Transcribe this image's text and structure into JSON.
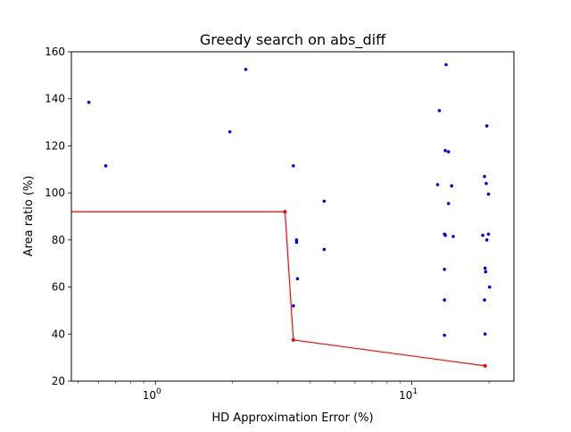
{
  "chart_data": {
    "type": "scatter",
    "title": "Greedy search on abs_diff",
    "xlabel": "HD Approximation Error (%)",
    "ylabel": "Area ratio (%)",
    "xscale": "log",
    "xlim": [
      0.47,
      25
    ],
    "ylim": [
      20,
      160
    ],
    "x_ticks": [
      {
        "value": 1,
        "label": "10",
        "sup": "0"
      },
      {
        "value": 10,
        "label": "10",
        "sup": "1"
      }
    ],
    "y_ticks": [
      20,
      40,
      60,
      80,
      100,
      120,
      140,
      160
    ],
    "grid": false,
    "legend": "none",
    "colors": {
      "points": "#0000ff",
      "frontier": "#ff0000"
    },
    "series": [
      {
        "marker": "dot",
        "color": "#0000ff",
        "points": [
          [
            0.55,
            138.5
          ],
          [
            0.64,
            111.5
          ],
          [
            1.95,
            126
          ],
          [
            2.25,
            152.5
          ],
          [
            3.45,
            111.5
          ],
          [
            3.55,
            80
          ],
          [
            3.55,
            79
          ],
          [
            3.58,
            63.5
          ],
          [
            3.45,
            52
          ],
          [
            4.55,
            96.5
          ],
          [
            4.55,
            76
          ],
          [
            12.6,
            103.5
          ],
          [
            12.8,
            135
          ],
          [
            13.6,
            154.5
          ],
          [
            13.5,
            118
          ],
          [
            13.9,
            117.5
          ],
          [
            14.3,
            103
          ],
          [
            13.9,
            95.5
          ],
          [
            13.4,
            82.5
          ],
          [
            13.5,
            82
          ],
          [
            14.5,
            81.5
          ],
          [
            13.4,
            67.5
          ],
          [
            13.4,
            54.5
          ],
          [
            13.4,
            39.5
          ],
          [
            19.2,
            107
          ],
          [
            19.5,
            104
          ],
          [
            19.9,
            99.5
          ],
          [
            19.6,
            128.5
          ],
          [
            18.9,
            82
          ],
          [
            19.9,
            82.5
          ],
          [
            19.6,
            80
          ],
          [
            19.3,
            68
          ],
          [
            19.4,
            66.5
          ],
          [
            20.1,
            60
          ],
          [
            19.2,
            54.5
          ],
          [
            19.3,
            40
          ]
        ]
      },
      {
        "marker": "line",
        "color": "#ff0000",
        "points": [
          [
            0.47,
            92
          ],
          [
            3.2,
            92
          ],
          [
            3.45,
            37.5
          ],
          [
            19.3,
            26.5
          ]
        ]
      }
    ]
  }
}
